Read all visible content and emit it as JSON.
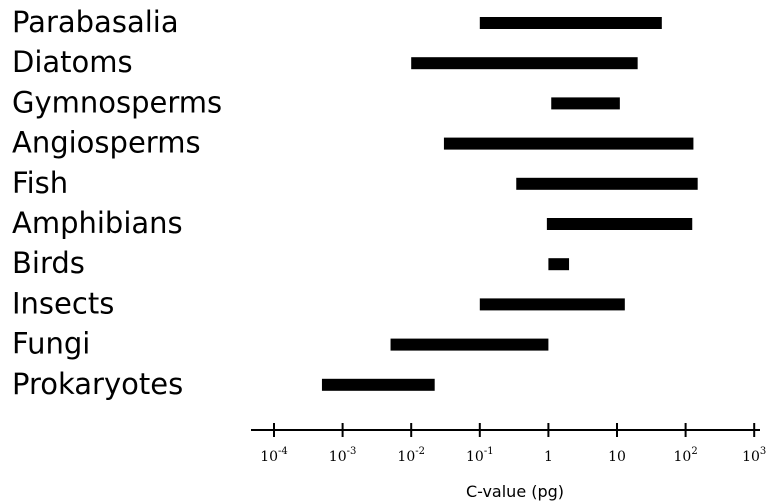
{
  "chart_data": {
    "type": "bar",
    "orientation": "horizontal-range",
    "title": "",
    "xlabel": "C-value (pg)",
    "ylabel": "",
    "x_scale": "log10",
    "xlim": [
      0.0001,
      1000
    ],
    "x_ticks": [
      {
        "value": 0.0001,
        "base": "10",
        "exp": "-4"
      },
      {
        "value": 0.001,
        "base": "10",
        "exp": "-3"
      },
      {
        "value": 0.01,
        "base": "10",
        "exp": "-2"
      },
      {
        "value": 0.1,
        "base": "10",
        "exp": "-1"
      },
      {
        "value": 1,
        "base": "1",
        "exp": ""
      },
      {
        "value": 10,
        "base": "10",
        "exp": ""
      },
      {
        "value": 100,
        "base": "10",
        "exp": "2"
      },
      {
        "value": 1000,
        "base": "10",
        "exp": "3"
      }
    ],
    "categories": [
      "Parabasalia",
      "Diatoms",
      "Gymnosperms",
      "Angiosperms",
      "Fish",
      "Amphibians",
      "Birds",
      "Insects",
      "Fungi",
      "Prokaryotes"
    ],
    "ranges": [
      [
        0.1,
        45
      ],
      [
        0.01,
        20
      ],
      [
        1.1,
        11
      ],
      [
        0.03,
        130
      ],
      [
        0.34,
        150
      ],
      [
        0.95,
        125
      ],
      [
        1.0,
        2.0
      ],
      [
        0.1,
        13
      ],
      [
        0.005,
        1.0
      ],
      [
        0.0005,
        0.022
      ]
    ],
    "bar_color": "#000000",
    "grid": false,
    "legend": "none"
  }
}
